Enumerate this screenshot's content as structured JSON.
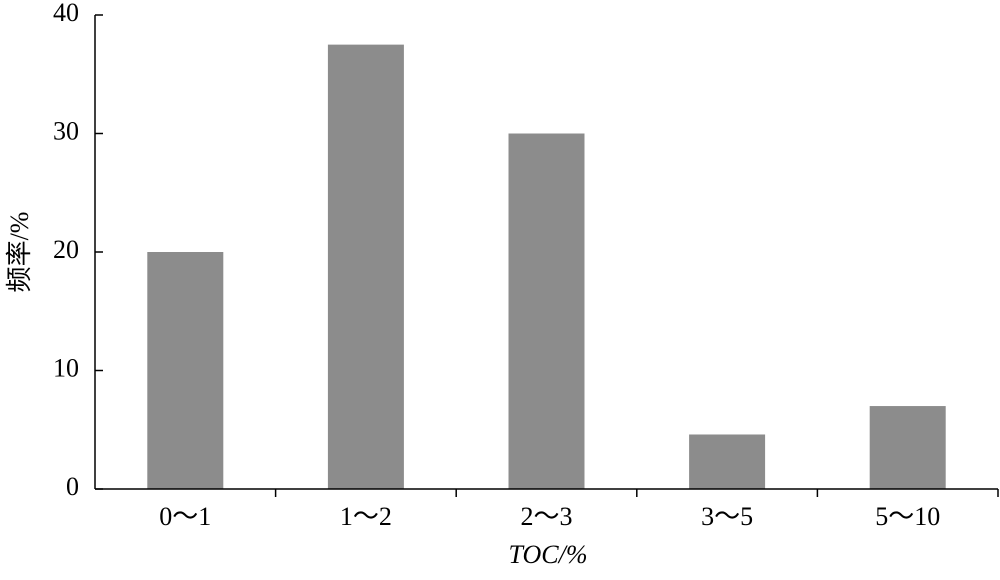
{
  "chart_data": {
    "type": "bar",
    "xlabel": "TOC/%",
    "ylabel": "频率/%",
    "categories": [
      "0～1",
      "1～2",
      "2～3",
      "3～5",
      "5～10"
    ],
    "values": [
      20,
      37.5,
      30,
      4.6,
      7
    ],
    "color": "#8c8c8c",
    "ylim": [
      0,
      40
    ],
    "yticks": [
      0,
      10,
      20,
      30,
      40
    ],
    "grid": false
  }
}
